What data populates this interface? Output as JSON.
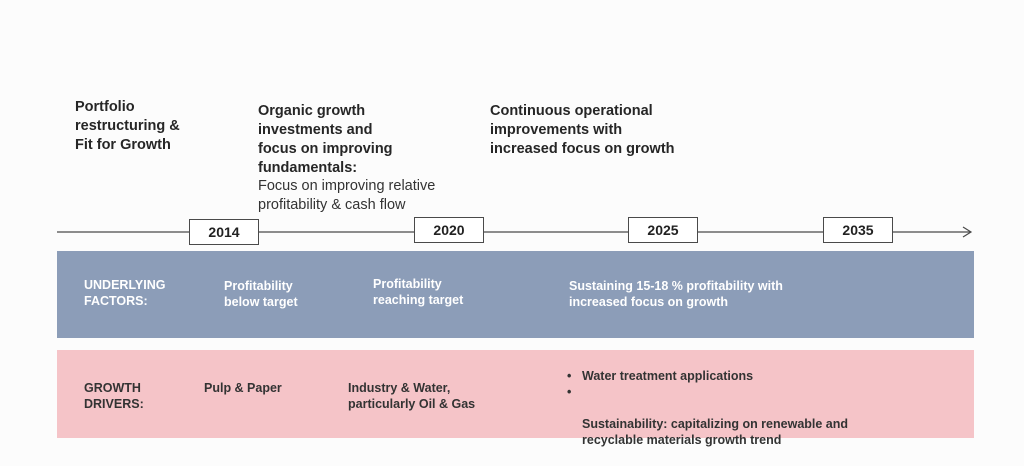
{
  "phases": [
    {
      "title": "Portfolio\nrestructuring &\nFit for Growth",
      "subtitle": ""
    },
    {
      "title": "Organic growth\ninvestments and\nfocus on improving\nfundamentals:",
      "subtitle": "Focus on improving relative\nprofitability & cash flow"
    },
    {
      "title": "Continuous operational\nimprovements with\nincreased focus on growth",
      "subtitle": ""
    }
  ],
  "years": [
    "2014",
    "2020",
    "2025",
    "2035"
  ],
  "underlying_factors": {
    "label": "UNDERLYING\nFACTORS:",
    "items": [
      "Profitability\nbelow target",
      "Profitability\nreaching target",
      "Sustaining 15-18 % profitability with\nincreased focus on growth"
    ]
  },
  "growth_drivers": {
    "label": "GROWTH\nDRIVERS:",
    "items": [
      "Pulp & Paper",
      "Industry & Water,\nparticularly Oil & Gas"
    ],
    "bullets": [
      "Water treatment applications",
      "Sustainability: capitalizing on renewable and\nrecyclable materials growth trend"
    ]
  },
  "colors": {
    "factors_band": "#8c9db8",
    "drivers_band": "#f5c4c8",
    "timeline": "#4a4a4a"
  }
}
